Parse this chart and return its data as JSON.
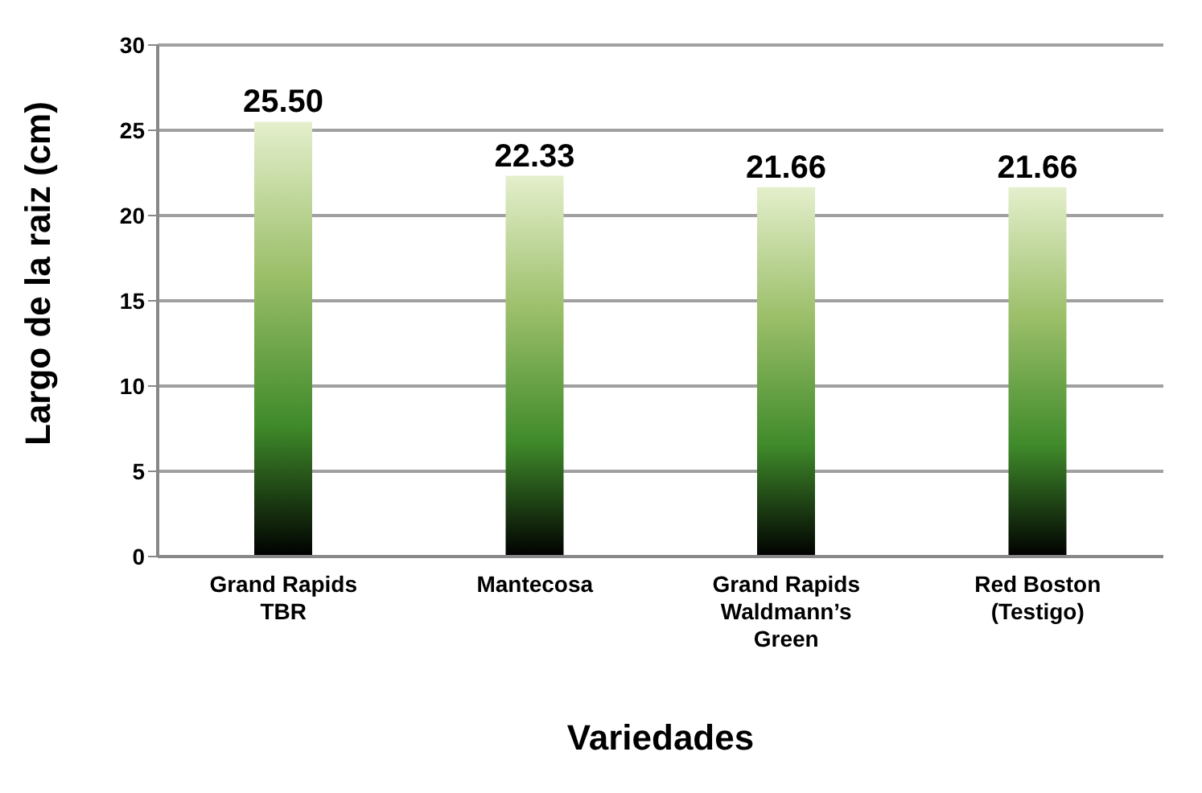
{
  "chart_data": {
    "type": "bar",
    "xlabel": "Variedades",
    "ylabel": "Largo de la raiz (cm)",
    "categories": [
      "Grand Rapids TBR",
      "Mantecosa",
      "Grand Rapids Waldmann’s Green",
      "Red Boston (Testigo)"
    ],
    "values": [
      25.5,
      22.33,
      21.66,
      21.66
    ],
    "color": "#3f8a2a",
    "value_labels": [
      "25.50",
      "22.33",
      "21.66",
      "21.66"
    ],
    "ylim": [
      0,
      30
    ],
    "yticks": [
      0,
      5,
      10,
      15,
      20,
      25,
      30
    ],
    "grid": "y"
  }
}
